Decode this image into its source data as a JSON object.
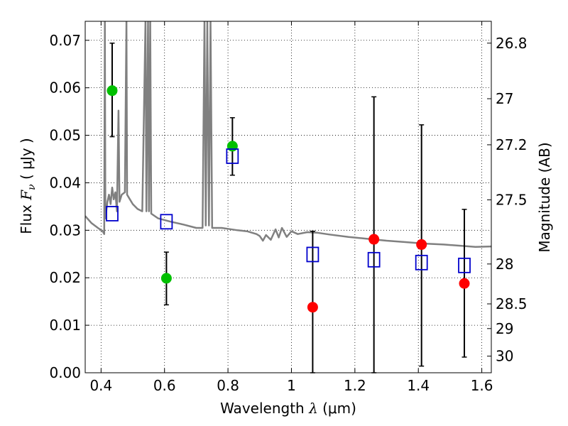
{
  "chart_data": {
    "type": "scatter",
    "title": "",
    "xlabel": "Wavelength",
    "xlabel_symbol": "λ",
    "xlabel_unit": "(μm)",
    "ylabel": "Flux",
    "ylabel_symbol": "F",
    "ylabel_subscript": "ν",
    "ylabel_unit": "( μJy )",
    "y2label": "Magnitude (AB)",
    "xlim": [
      0.35,
      1.63
    ],
    "ylim": [
      0.0,
      0.074
    ],
    "grid": true,
    "x_ticks": [
      0.4,
      0.6,
      0.8,
      1.0,
      1.2,
      1.4,
      1.6
    ],
    "x_tick_labels": [
      "0.4",
      "0.6",
      "0.8",
      "1",
      "1.2",
      "1.4",
      "1.6"
    ],
    "y_ticks": [
      0.0,
      0.01,
      0.02,
      0.03,
      0.04,
      0.05,
      0.06,
      0.07
    ],
    "y_tick_labels": [
      "0.00",
      "0.01",
      "0.02",
      "0.03",
      "0.04",
      "0.05",
      "0.06",
      "0.07"
    ],
    "y2_ticks": [
      {
        "label": "26.8",
        "flux": 0.0694
      },
      {
        "label": "27",
        "flux": 0.0577
      },
      {
        "label": "27.2",
        "flux": 0.048
      },
      {
        "label": "27.5",
        "flux": 0.0364
      },
      {
        "label": "28",
        "flux": 0.0229
      },
      {
        "label": "28.5",
        "flux": 0.0145
      },
      {
        "label": "29",
        "flux": 0.0093
      },
      {
        "label": "30",
        "flux": 0.0035
      }
    ],
    "series": [
      {
        "color": "#00c000",
        "marker": "filled-circle",
        "points": [
          {
            "x": 0.435,
            "y": 0.0594,
            "ylo": 0.0497,
            "yhi": 0.0694
          },
          {
            "x": 0.606,
            "y": 0.0199,
            "ylo": 0.0143,
            "yhi": 0.0254
          },
          {
            "x": 0.814,
            "y": 0.0477,
            "ylo": 0.0416,
            "yhi": 0.0537
          }
        ]
      },
      {
        "color": "#ff0000",
        "marker": "filled-circle",
        "points": [
          {
            "x": 1.067,
            "y": 0.0138,
            "ylo": 0.0,
            "yhi": 0.0298
          },
          {
            "x": 1.26,
            "y": 0.0281,
            "ylo": 0.0,
            "yhi": 0.0581
          },
          {
            "x": 1.41,
            "y": 0.027,
            "ylo": 0.0014,
            "yhi": 0.0522
          },
          {
            "x": 1.545,
            "y": 0.0188,
            "ylo": 0.0033,
            "yhi": 0.0344
          }
        ]
      },
      {
        "color": "#0000cc",
        "marker": "open-square",
        "points": [
          {
            "x": 0.435,
            "y": 0.0335
          },
          {
            "x": 0.606,
            "y": 0.0318
          },
          {
            "x": 0.814,
            "y": 0.0456
          },
          {
            "x": 1.067,
            "y": 0.0249
          },
          {
            "x": 1.26,
            "y": 0.0238
          },
          {
            "x": 1.41,
            "y": 0.0232
          },
          {
            "x": 1.545,
            "y": 0.0226
          }
        ]
      }
    ],
    "model_spectrum": {
      "color": "#808080",
      "points": [
        [
          0.35,
          0.033
        ],
        [
          0.37,
          0.0315
        ],
        [
          0.39,
          0.0305
        ],
        [
          0.405,
          0.0298
        ],
        [
          0.41,
          0.0292
        ],
        [
          0.412,
          0.074
        ],
        [
          0.4135,
          0.0325
        ],
        [
          0.42,
          0.036
        ],
        [
          0.425,
          0.0375
        ],
        [
          0.43,
          0.0355
        ],
        [
          0.435,
          0.039
        ],
        [
          0.44,
          0.0365
        ],
        [
          0.445,
          0.038
        ],
        [
          0.45,
          0.034
        ],
        [
          0.455,
          0.0552
        ],
        [
          0.458,
          0.036
        ],
        [
          0.465,
          0.0375
        ],
        [
          0.475,
          0.038
        ],
        [
          0.48,
          0.074
        ],
        [
          0.482,
          0.0375
        ],
        [
          0.5,
          0.0355
        ],
        [
          0.515,
          0.0345
        ],
        [
          0.53,
          0.034
        ],
        [
          0.54,
          0.074
        ],
        [
          0.543,
          0.034
        ],
        [
          0.548,
          0.074
        ],
        [
          0.551,
          0.034
        ],
        [
          0.555,
          0.074
        ],
        [
          0.558,
          0.0335
        ],
        [
          0.58,
          0.0325
        ],
        [
          0.62,
          0.0318
        ],
        [
          0.66,
          0.0312
        ],
        [
          0.7,
          0.0305
        ],
        [
          0.72,
          0.0305
        ],
        [
          0.726,
          0.074
        ],
        [
          0.73,
          0.031
        ],
        [
          0.735,
          0.074
        ],
        [
          0.74,
          0.031
        ],
        [
          0.745,
          0.074
        ],
        [
          0.75,
          0.0305
        ],
        [
          0.78,
          0.0305
        ],
        [
          0.8,
          0.0303
        ],
        [
          0.83,
          0.03
        ],
        [
          0.86,
          0.0298
        ],
        [
          0.89,
          0.0292
        ],
        [
          0.9,
          0.0288
        ],
        [
          0.91,
          0.0278
        ],
        [
          0.92,
          0.029
        ],
        [
          0.935,
          0.028
        ],
        [
          0.95,
          0.0302
        ],
        [
          0.96,
          0.0285
        ],
        [
          0.97,
          0.0305
        ],
        [
          0.985,
          0.0286
        ],
        [
          1.0,
          0.0298
        ],
        [
          1.02,
          0.0292
        ],
        [
          1.05,
          0.0296
        ],
        [
          1.08,
          0.0295
        ],
        [
          1.12,
          0.0291
        ],
        [
          1.18,
          0.0286
        ],
        [
          1.24,
          0.0282
        ],
        [
          1.3,
          0.0278
        ],
        [
          1.36,
          0.0275
        ],
        [
          1.42,
          0.0272
        ],
        [
          1.48,
          0.027
        ],
        [
          1.54,
          0.0267
        ],
        [
          1.58,
          0.0265
        ],
        [
          1.63,
          0.0266
        ]
      ]
    }
  }
}
